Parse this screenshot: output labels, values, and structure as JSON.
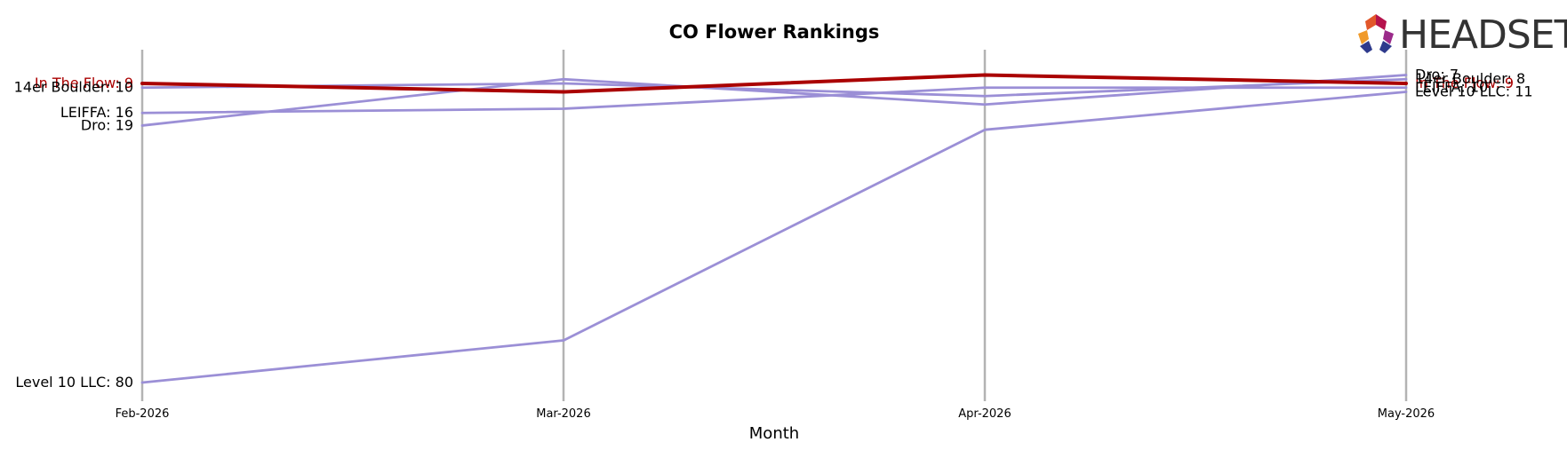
{
  "chart_data": {
    "type": "line",
    "title": "CO Flower Rankings",
    "xlabel": "Month",
    "ylabel": "",
    "categories": [
      "Feb-2026",
      "Mar-2026",
      "Apr-2026",
      "May-2026"
    ],
    "y_inverted": true,
    "ylim": [
      5,
      80
    ],
    "grid": "vertical",
    "highlight_color": "#aa0000",
    "series_color": "#9b8fd6",
    "series": [
      {
        "name": "In The Flow",
        "values": [
          9,
          11,
          7,
          9
        ],
        "highlight": true
      },
      {
        "name": "14er Boulder",
        "values": [
          10,
          9,
          12,
          8
        ],
        "highlight": false
      },
      {
        "name": "LEIFFA",
        "values": [
          16,
          15,
          10,
          10
        ],
        "highlight": false
      },
      {
        "name": "Dro",
        "values": [
          19,
          8,
          14,
          7
        ],
        "highlight": false
      },
      {
        "name": "Level 10 LLC",
        "values": [
          80,
          70,
          20,
          11
        ],
        "highlight": false
      }
    ]
  },
  "logo": {
    "text": "HEADSET"
  }
}
